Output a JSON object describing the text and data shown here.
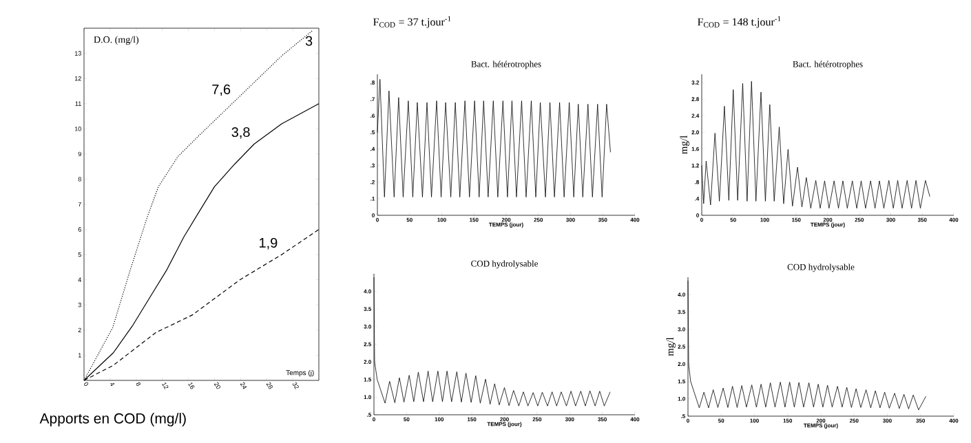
{
  "chart_data": [
    {
      "type": "line",
      "ylabel": "D.O. (mg/l)",
      "xlabel": "Temps (j)",
      "xlim": [
        0,
        36
      ],
      "ylim": [
        0,
        14
      ],
      "xticks": [
        0,
        4,
        8,
        12,
        16,
        20,
        24,
        28,
        32
      ],
      "yticks": [
        1,
        2,
        3,
        4,
        5,
        6,
        7,
        8,
        9,
        10,
        11,
        12,
        13
      ],
      "annotations": [
        "Apports en COD (mg/l)",
        "3"
      ],
      "series": [
        {
          "name": "7,6",
          "color": "#000000",
          "line_style": "dotted",
          "x": [
            0,
            4.4,
            7.1,
            9.7,
            11.4,
            14.4,
            17.5,
            23.1,
            30.3,
            35
          ],
          "values": [
            0,
            2.1,
            4.4,
            6.5,
            7.7,
            8.9,
            9.7,
            11.1,
            12.9,
            13.9
          ]
        },
        {
          "name": "3,8",
          "color": "#000000",
          "line_style": "solid",
          "x": [
            0,
            4.5,
            7.5,
            10.1,
            12.7,
            15.3,
            17.4,
            20,
            23.1,
            26.1,
            30.3,
            36
          ],
          "values": [
            0,
            1.1,
            2.2,
            3.3,
            4.4,
            5.7,
            6.6,
            7.7,
            8.6,
            9.4,
            10.2,
            11
          ]
        },
        {
          "name": "1,9",
          "color": "#000000",
          "line_style": "dashed",
          "x": [
            0,
            4.5,
            11,
            16.6,
            23.9,
            30.3,
            36
          ],
          "values": [
            0,
            0.6,
            1.9,
            2.6,
            4,
            5,
            6
          ]
        }
      ]
    },
    {
      "type": "line",
      "subtitle": "F$_{COD}$ = 37 t.jour$^{-1}$",
      "title": "Bact. hétérotrophes",
      "xlabel": "TEMPS (jour)",
      "xlim": [
        0,
        400
      ],
      "ylim": [
        0,
        0.85
      ],
      "xticks": [
        0,
        50,
        100,
        150,
        200,
        250,
        300,
        350,
        400
      ],
      "yticks": [
        0,
        {
          "value": 0.1,
          "label": ".1"
        },
        {
          "value": 0.2,
          "label": ".2"
        },
        {
          "value": 0.3,
          "label": ".3"
        },
        {
          "value": 0.4,
          "label": ".4"
        },
        {
          "value": 0.5,
          "label": ".5"
        },
        {
          "value": 0.6,
          "label": ".6"
        },
        {
          "value": 0.7,
          "label": ".7"
        },
        {
          "value": 0.8,
          "label": ".8"
        }
      ],
      "x": [
        0,
        4,
        11,
        18,
        26,
        33,
        40,
        48,
        55,
        62,
        70,
        77,
        84,
        92,
        99,
        106,
        114,
        121,
        128,
        136,
        143,
        151,
        158,
        165,
        172,
        180,
        187,
        195,
        202,
        209,
        216,
        224,
        231,
        239,
        246,
        253,
        261,
        268,
        275,
        283,
        290,
        298,
        305,
        312,
        319,
        327,
        334,
        342,
        349,
        356,
        362
      ],
      "series": [
        {
          "color": "#000000",
          "values": [
            0.5,
            0.82,
            0.11,
            0.75,
            0.11,
            0.71,
            0.11,
            0.69,
            0.11,
            0.68,
            0.11,
            0.68,
            0.11,
            0.69,
            0.11,
            0.68,
            0.11,
            0.68,
            0.11,
            0.69,
            0.11,
            0.69,
            0.11,
            0.69,
            0.11,
            0.69,
            0.11,
            0.69,
            0.11,
            0.69,
            0.11,
            0.69,
            0.11,
            0.69,
            0.11,
            0.68,
            0.11,
            0.68,
            0.11,
            0.68,
            0.11,
            0.68,
            0.11,
            0.67,
            0.11,
            0.67,
            0.11,
            0.67,
            0.11,
            0.67,
            0.38
          ]
        }
      ]
    },
    {
      "type": "line",
      "subtitle": "F$_{COD}$ = 148 t.jour$^{-1}$",
      "title": "Bact. hétérotrophes",
      "xlabel": "TEMPS (jour)",
      "ylabel": "mg/l",
      "xlim": [
        0,
        400
      ],
      "ylim": [
        0,
        3.4
      ],
      "xticks": [
        0,
        50,
        100,
        150,
        200,
        250,
        300,
        350,
        400
      ],
      "yticks": [
        0,
        {
          "value": 0.4,
          "label": ".4"
        },
        {
          "value": 0.8,
          "label": ".8"
        },
        1.2,
        1.6,
        {
          "value": 2,
          "label": "2.0"
        },
        2.4,
        2.8,
        3.2
      ],
      "x": [
        0,
        3,
        7,
        14,
        21,
        28,
        36,
        43,
        50,
        57,
        65,
        72,
        79,
        86,
        94,
        101,
        108,
        115,
        123,
        130,
        137,
        144,
        152,
        159,
        166,
        173,
        181,
        188,
        195,
        202,
        210,
        217,
        224,
        231,
        239,
        246,
        253,
        260,
        268,
        275,
        282,
        289,
        297,
        304,
        311,
        318,
        326,
        333,
        340,
        347,
        355,
        362
      ],
      "series": [
        {
          "color": "#000000",
          "values": [
            1.2,
            0.28,
            1.31,
            0.25,
            1.98,
            0.34,
            2.63,
            0.36,
            3.03,
            0.36,
            3.18,
            0.34,
            3.23,
            0.34,
            2.97,
            0.34,
            2.67,
            0.34,
            2.13,
            0.28,
            1.59,
            0.22,
            1.16,
            0.2,
            0.91,
            0.17,
            0.84,
            0.17,
            0.83,
            0.17,
            0.83,
            0.17,
            0.83,
            0.17,
            0.83,
            0.17,
            0.83,
            0.17,
            0.83,
            0.17,
            0.83,
            0.17,
            0.84,
            0.17,
            0.84,
            0.17,
            0.84,
            0.17,
            0.84,
            0.17,
            0.84,
            0.45
          ]
        }
      ]
    },
    {
      "type": "line",
      "title": "COD hydrolysable",
      "xlabel": "TEMPS (jour)",
      "xlim": [
        0,
        400
      ],
      "ylim": [
        0.5,
        4.5
      ],
      "xticks": [
        0,
        50,
        100,
        150,
        200,
        250,
        300,
        350,
        400
      ],
      "yticks": [
        {
          "value": 0.5,
          "label": ".5"
        },
        {
          "value": 1,
          "label": "1.0"
        },
        1.5,
        {
          "value": 2,
          "label": "2.0"
        },
        2.5,
        {
          "value": 3,
          "label": "3.0"
        },
        3.5,
        {
          "value": 4,
          "label": "4.0"
        }
      ],
      "x": [
        0,
        1,
        5,
        17,
        24,
        32,
        39,
        46,
        54,
        61,
        68,
        76,
        83,
        90,
        98,
        105,
        112,
        119,
        127,
        134,
        141,
        149,
        156,
        163,
        171,
        178,
        185,
        192,
        200,
        207,
        214,
        222,
        229,
        236,
        244,
        251,
        258,
        266,
        273,
        280,
        287,
        295,
        302,
        309,
        317,
        324,
        331,
        339,
        346,
        353,
        362
      ],
      "series": [
        {
          "color": "#000000",
          "values": [
            4.4,
            2.0,
            1.5,
            0.83,
            1.45,
            0.84,
            1.55,
            0.86,
            1.62,
            0.87,
            1.71,
            0.87,
            1.74,
            0.87,
            1.74,
            0.87,
            1.74,
            0.87,
            1.72,
            0.86,
            1.68,
            0.85,
            1.61,
            0.83,
            1.51,
            0.8,
            1.38,
            0.78,
            1.27,
            0.76,
            1.19,
            0.75,
            1.15,
            0.75,
            1.13,
            0.75,
            1.14,
            0.75,
            1.15,
            0.75,
            1.15,
            0.75,
            1.17,
            0.75,
            1.17,
            0.75,
            1.18,
            0.75,
            1.17,
            0.75,
            1.15
          ]
        }
      ]
    },
    {
      "type": "line",
      "title": "COD hydrolysable",
      "xlabel": "TEMPS (jour)",
      "ylabel": "mg/l",
      "xlim": [
        0,
        400
      ],
      "ylim": [
        0.5,
        4.5
      ],
      "xticks": [
        0,
        50,
        100,
        150,
        200,
        250,
        300,
        350,
        400
      ],
      "yticks": [
        {
          "value": 0.5,
          "label": ".5"
        },
        {
          "value": 1,
          "label": "1.0"
        },
        1.5,
        {
          "value": 2,
          "label": "2.0"
        },
        2.5,
        {
          "value": 3,
          "label": "3.0"
        },
        3.5,
        {
          "value": 4,
          "label": "4.0"
        }
      ],
      "x": [
        0,
        1,
        4,
        17,
        24,
        31,
        38,
        45,
        53,
        60,
        67,
        74,
        81,
        88,
        96,
        103,
        110,
        117,
        124,
        131,
        139,
        146,
        153,
        160,
        167,
        174,
        182,
        189,
        196,
        203,
        210,
        217,
        225,
        232,
        239,
        246,
        253,
        260,
        268,
        275,
        282,
        289,
        296,
        303,
        311,
        318,
        325,
        332,
        339,
        347,
        358
      ],
      "series": [
        {
          "color": "#000000",
          "values": [
            4.4,
            2.0,
            1.5,
            0.74,
            1.19,
            0.74,
            1.26,
            0.75,
            1.31,
            0.75,
            1.36,
            0.75,
            1.38,
            0.76,
            1.4,
            0.76,
            1.42,
            0.76,
            1.46,
            0.76,
            1.48,
            0.76,
            1.48,
            0.76,
            1.47,
            0.76,
            1.46,
            0.76,
            1.42,
            0.76,
            1.39,
            0.76,
            1.36,
            0.76,
            1.33,
            0.75,
            1.29,
            0.75,
            1.26,
            0.74,
            1.23,
            0.74,
            1.19,
            0.73,
            1.16,
            0.72,
            1.13,
            0.71,
            1.11,
            0.68,
            1.07
          ]
        }
      ]
    }
  ]
}
